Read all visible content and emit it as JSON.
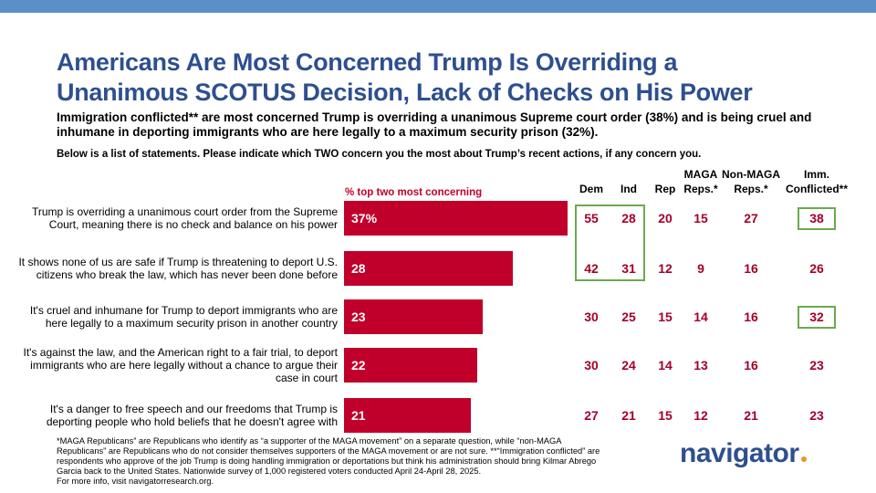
{
  "header": {
    "title": [
      "Americans Are Most Concerned Trump Is Overriding a",
      "Unanimous SCOTUS Decision, Lack of Checks on His Power"
    ],
    "subtitle": "Immigration conflicted** are most concerned Trump is overriding a unanimous Supreme court order (38%) and is being cruel and inhumane in deporting immigrants who are here legally to a maximum security prison (32%).",
    "question": "Below is a list of statements. Please indicate which TWO concern you the most about Trump’s recent actions, if any concern you."
  },
  "chart_data": {
    "type": "bar",
    "orientation": "horizontal",
    "color": "#c0002a",
    "axis_label": "% top two most concerning",
    "categories": [
      "Trump is overriding a unanimous court order from the Supreme Court, meaning there is no check and balance on his power",
      "It shows none of us are safe if Trump is threatening to deport U.S. citizens who break the law, which has never been done before",
      "It's cruel and inhumane for Trump to deport immigrants who are here legally to a maximum security prison in another country",
      "It's against the law, and the American right to a fair trial, to deport immigrants who are here legally without a chance to argue their case in court",
      "It's a danger to free speech and our freedoms that Trump is deporting people who hold beliefs that he doesn't agree with"
    ],
    "values": [
      37,
      28,
      23,
      22,
      21
    ],
    "value_labels": [
      "37%",
      "28",
      "23",
      "22",
      "21"
    ]
  },
  "table": {
    "columns": [
      "Dem",
      "Ind",
      "Rep",
      "MAGA Reps.*",
      "Non-MAGA Reps.*",
      "Imm. Conflicted**"
    ],
    "rows": [
      [
        55,
        28,
        20,
        15,
        27,
        38
      ],
      [
        42,
        31,
        12,
        9,
        16,
        26
      ],
      [
        30,
        25,
        15,
        14,
        16,
        32
      ],
      [
        30,
        24,
        14,
        13,
        16,
        23
      ],
      [
        27,
        21,
        15,
        12,
        21,
        23
      ]
    ]
  },
  "footer": {
    "note": "*MAGA Republicans” are Republicans who identify as “a supporter of the MAGA movement” on a separate question, while “non-MAGA Republicans” are Republicans who do not consider themselves supporters of the MAGA movement or are not sure. **“Immigration conflicted” are respondents who approve of the job Trump is doing handling immigration or deportations but think his administration should bring Kilmar Abrego Garcia back to the United States. Nationwide survey of 1,000 registered voters conducted April 24-April 28, 2025.",
    "more_info": "For more info, visit navigatorresearch.org.",
    "logo": "navigator"
  }
}
